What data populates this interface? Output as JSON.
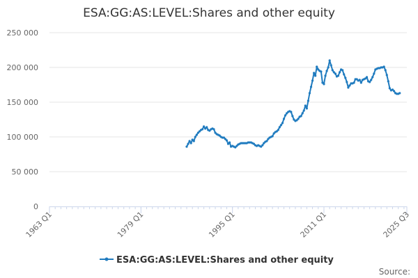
{
  "chart_data": {
    "type": "line",
    "title": "ESA:GG:AS:LEVEL:Shares and other equity",
    "xlabel": "",
    "ylabel": "",
    "x_range": [
      1963.0,
      2025.5
    ],
    "ylim": [
      0,
      250000
    ],
    "y_ticks": [
      0,
      50000,
      100000,
      150000,
      200000,
      250000
    ],
    "y_tick_labels": [
      "0",
      "50 000",
      "100 000",
      "150 000",
      "200 000",
      "250 000"
    ],
    "x_ticks": [
      1963.0,
      1979.0,
      1995.0,
      2011.0,
      2025.5
    ],
    "x_tick_labels": [
      "1963 Q1",
      "1979 Q1",
      "1995 Q1",
      "2011 Q1",
      "2025 Q3"
    ],
    "series": [
      {
        "name": "ESA:GG:AS:LEVEL:Shares and other equity",
        "color": "#1f7bbf",
        "points": [
          [
            1987.0,
            86000
          ],
          [
            1987.25,
            90000
          ],
          [
            1987.5,
            94000
          ],
          [
            1987.75,
            91000
          ],
          [
            1988.0,
            96000
          ],
          [
            1988.25,
            94000
          ],
          [
            1988.5,
            100000
          ],
          [
            1988.75,
            103000
          ],
          [
            1989.0,
            106000
          ],
          [
            1989.25,
            108000
          ],
          [
            1989.5,
            110000
          ],
          [
            1989.75,
            111000
          ],
          [
            1990.0,
            115000
          ],
          [
            1990.25,
            112000
          ],
          [
            1990.5,
            114000
          ],
          [
            1990.75,
            110000
          ],
          [
            1991.0,
            109000
          ],
          [
            1991.25,
            111000
          ],
          [
            1991.5,
            112000
          ],
          [
            1991.75,
            111000
          ],
          [
            1992.0,
            106000
          ],
          [
            1992.25,
            104000
          ],
          [
            1992.5,
            103000
          ],
          [
            1992.75,
            102000
          ],
          [
            1993.0,
            100000
          ],
          [
            1993.25,
            99000
          ],
          [
            1993.5,
            99000
          ],
          [
            1993.75,
            97000
          ],
          [
            1994.0,
            95000
          ],
          [
            1994.25,
            90000
          ],
          [
            1994.5,
            92000
          ],
          [
            1994.75,
            86000
          ],
          [
            1995.0,
            87000
          ],
          [
            1995.25,
            86000
          ],
          [
            1995.5,
            85000
          ],
          [
            1995.75,
            87000
          ],
          [
            1996.0,
            89000
          ],
          [
            1996.25,
            90000
          ],
          [
            1996.5,
            91000
          ],
          [
            1996.75,
            91000
          ],
          [
            1997.0,
            91000
          ],
          [
            1997.25,
            91000
          ],
          [
            1997.5,
            91000
          ],
          [
            1997.75,
            92000
          ],
          [
            1998.0,
            92000
          ],
          [
            1998.25,
            92000
          ],
          [
            1998.5,
            91000
          ],
          [
            1998.75,
            90000
          ],
          [
            1999.0,
            88000
          ],
          [
            1999.25,
            87000
          ],
          [
            1999.5,
            88000
          ],
          [
            1999.75,
            87000
          ],
          [
            2000.0,
            86000
          ],
          [
            2000.25,
            88000
          ],
          [
            2000.5,
            91000
          ],
          [
            2000.75,
            93000
          ],
          [
            2001.0,
            94000
          ],
          [
            2001.25,
            97000
          ],
          [
            2001.5,
            99000
          ],
          [
            2001.75,
            100000
          ],
          [
            2002.0,
            101000
          ],
          [
            2002.25,
            105000
          ],
          [
            2002.5,
            107000
          ],
          [
            2002.75,
            108000
          ],
          [
            2003.0,
            110000
          ],
          [
            2003.25,
            114000
          ],
          [
            2003.5,
            117000
          ],
          [
            2003.75,
            120000
          ],
          [
            2004.0,
            126000
          ],
          [
            2004.25,
            131000
          ],
          [
            2004.5,
            134000
          ],
          [
            2004.75,
            136000
          ],
          [
            2005.0,
            137000
          ],
          [
            2005.25,
            136000
          ],
          [
            2005.5,
            130000
          ],
          [
            2005.75,
            125000
          ],
          [
            2006.0,
            123000
          ],
          [
            2006.25,
            124000
          ],
          [
            2006.5,
            126000
          ],
          [
            2006.75,
            129000
          ],
          [
            2007.0,
            130000
          ],
          [
            2007.25,
            134000
          ],
          [
            2007.5,
            138000
          ],
          [
            2007.75,
            145000
          ],
          [
            2008.0,
            141000
          ],
          [
            2008.25,
            152000
          ],
          [
            2008.5,
            163000
          ],
          [
            2008.75,
            172000
          ],
          [
            2009.0,
            181000
          ],
          [
            2009.25,
            192000
          ],
          [
            2009.5,
            188000
          ],
          [
            2009.75,
            201000
          ],
          [
            2010.0,
            197000
          ],
          [
            2010.25,
            195000
          ],
          [
            2010.5,
            194000
          ],
          [
            2010.75,
            178000
          ],
          [
            2011.0,
            176000
          ],
          [
            2011.25,
            188000
          ],
          [
            2011.5,
            195000
          ],
          [
            2011.75,
            200000
          ],
          [
            2012.0,
            210000
          ],
          [
            2012.25,
            203000
          ],
          [
            2012.5,
            196000
          ],
          [
            2012.75,
            193000
          ],
          [
            2013.0,
            191000
          ],
          [
            2013.25,
            187000
          ],
          [
            2013.5,
            188000
          ],
          [
            2013.75,
            193000
          ],
          [
            2014.0,
            197000
          ],
          [
            2014.25,
            196000
          ],
          [
            2014.5,
            190000
          ],
          [
            2014.75,
            185000
          ],
          [
            2015.0,
            179000
          ],
          [
            2015.25,
            171000
          ],
          [
            2015.5,
            174000
          ],
          [
            2015.75,
            177000
          ],
          [
            2016.0,
            177000
          ],
          [
            2016.25,
            178000
          ],
          [
            2016.5,
            183000
          ],
          [
            2016.75,
            183000
          ],
          [
            2017.0,
            181000
          ],
          [
            2017.25,
            182000
          ],
          [
            2017.5,
            178000
          ],
          [
            2017.75,
            182000
          ],
          [
            2018.0,
            183000
          ],
          [
            2018.25,
            184000
          ],
          [
            2018.5,
            186000
          ],
          [
            2018.75,
            180000
          ],
          [
            2019.0,
            179000
          ],
          [
            2019.25,
            182000
          ],
          [
            2019.5,
            186000
          ],
          [
            2019.75,
            191000
          ],
          [
            2020.0,
            197000
          ],
          [
            2020.25,
            198000
          ],
          [
            2020.5,
            199000
          ],
          [
            2020.75,
            199000
          ],
          [
            2021.0,
            200000
          ],
          [
            2021.25,
            200000
          ],
          [
            2021.5,
            201000
          ],
          [
            2021.75,
            196000
          ],
          [
            2022.0,
            189000
          ],
          [
            2022.25,
            180000
          ],
          [
            2022.5,
            170000
          ],
          [
            2022.75,
            167000
          ],
          [
            2023.0,
            168000
          ],
          [
            2023.25,
            166000
          ],
          [
            2023.5,
            163000
          ],
          [
            2023.75,
            162000
          ],
          [
            2024.0,
            162000
          ],
          [
            2024.25,
            163000
          ]
        ]
      }
    ],
    "legend": {
      "position": "bottom-center",
      "label": "ESA:GG:AS:LEVEL:Shares and other equity"
    },
    "grid": "horizontal",
    "source_label": "Source:"
  }
}
